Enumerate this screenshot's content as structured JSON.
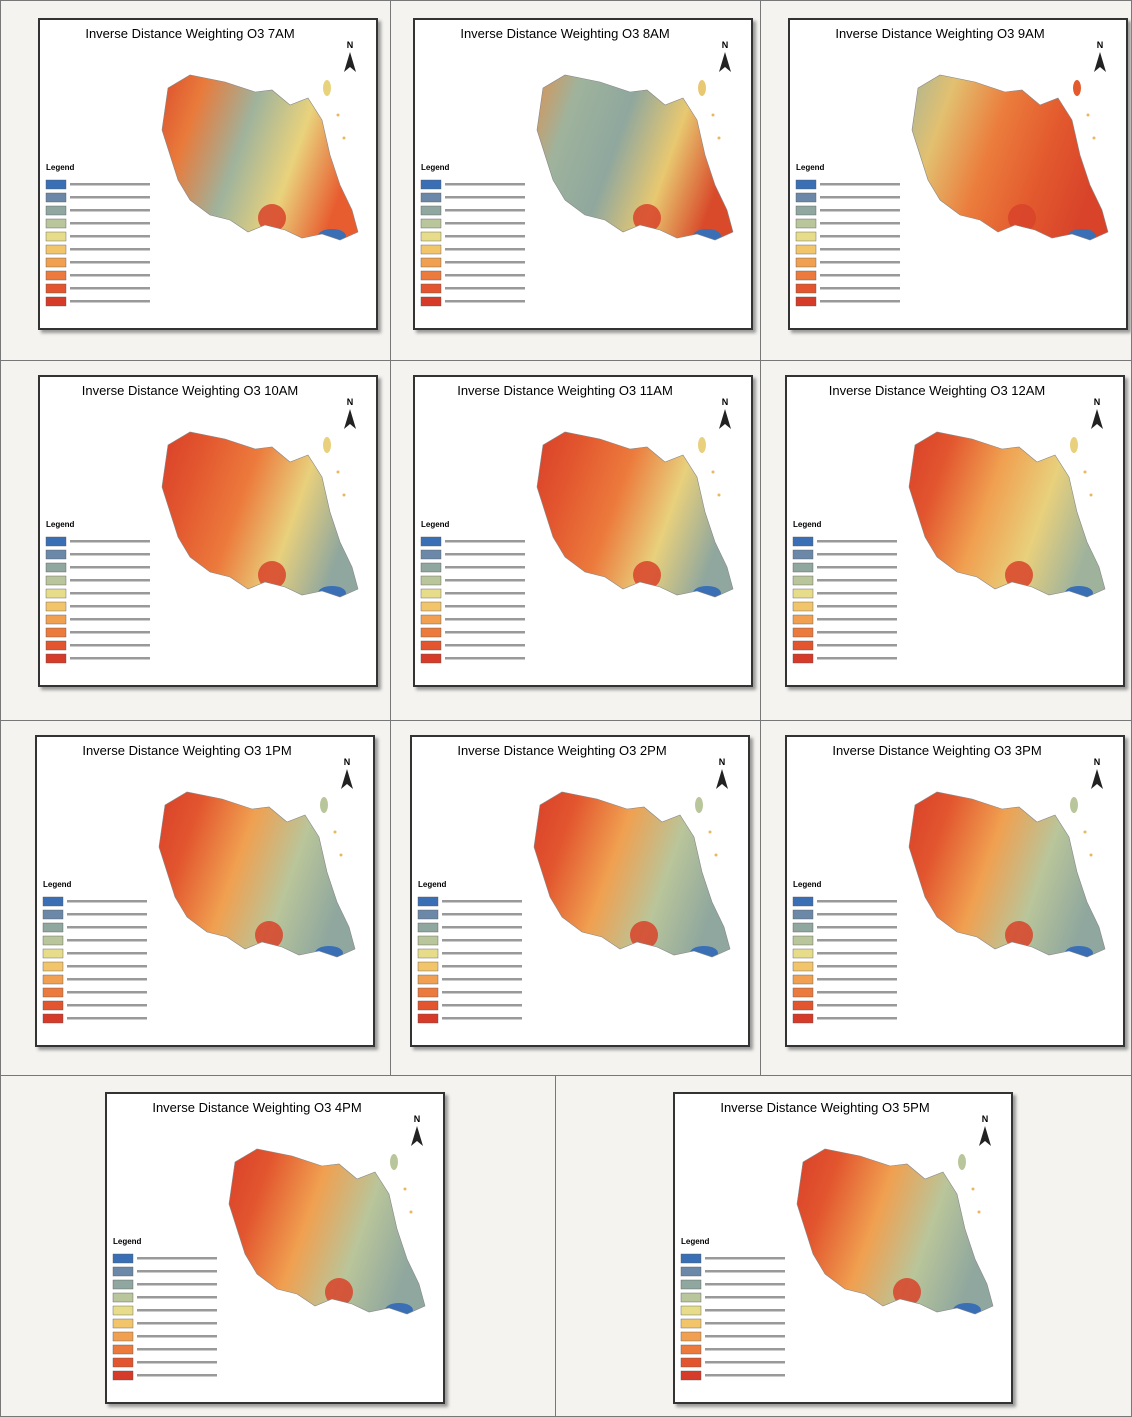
{
  "panels": [
    {
      "title": "Inverse Distance Weighting O3 7AM",
      "north": "N",
      "legend_title": "Legend"
    },
    {
      "title": "Inverse Distance Weighting O3 8AM",
      "north": "N",
      "legend_title": "Legend"
    },
    {
      "title": "Inverse Distance Weighting O3 9AM",
      "north": "N",
      "legend_title": "Legend"
    },
    {
      "title": "Inverse Distance Weighting O3 10AM",
      "north": "N",
      "legend_title": "Legend"
    },
    {
      "title": "Inverse Distance Weighting O3 11AM",
      "north": "N",
      "legend_title": "Legend"
    },
    {
      "title": "Inverse Distance Weighting O3 12AM",
      "north": "N",
      "legend_title": "Legend"
    },
    {
      "title": "Inverse Distance Weighting O3 1PM",
      "north": "N",
      "legend_title": "Legend"
    },
    {
      "title": "Inverse Distance Weighting O3 2PM",
      "north": "N",
      "legend_title": "Legend"
    },
    {
      "title": "Inverse Distance Weighting O3 3PM",
      "north": "N",
      "legend_title": "Legend"
    },
    {
      "title": "Inverse Distance Weighting O3 4PM",
      "north": "N",
      "legend_title": "Legend"
    },
    {
      "title": "Inverse Distance Weighting O3 5PM",
      "north": "N",
      "legend_title": "Legend"
    }
  ]
}
